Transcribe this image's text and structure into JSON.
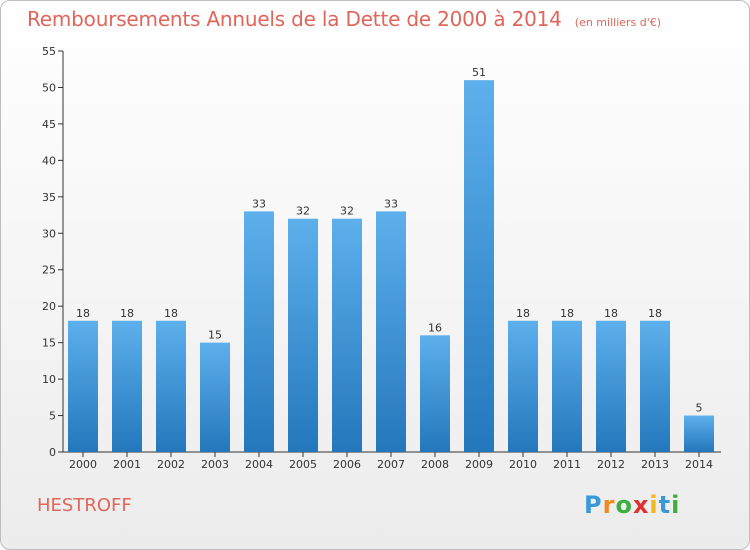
{
  "chart_data": {
    "type": "bar",
    "title": "Remboursements Annuels de la Dette de 2000 à 2014",
    "subtitle": "(en milliers d'€)",
    "categories": [
      "2000",
      "2001",
      "2002",
      "2003",
      "2004",
      "2005",
      "2006",
      "2007",
      "2008",
      "2009",
      "2010",
      "2011",
      "2012",
      "2013",
      "2014"
    ],
    "values": [
      18,
      18,
      18,
      15,
      33,
      32,
      32,
      33,
      16,
      51,
      18,
      18,
      18,
      18,
      5
    ],
    "ylim": [
      0,
      55
    ],
    "yticks": [
      0,
      5,
      10,
      15,
      20,
      25,
      30,
      35,
      40,
      45,
      50,
      55
    ],
    "grid": false,
    "bar_color": "#4a9ee0",
    "data_labels": true
  },
  "commune": "HESTROFF",
  "logo": {
    "text": "Proxiti",
    "letters": [
      {
        "ch": "P",
        "color": "#3a9ad9"
      },
      {
        "ch": "r",
        "color": "#f08a1c"
      },
      {
        "ch": "o",
        "color": "#3fae3f"
      },
      {
        "ch": "x",
        "color": "#e0312f"
      },
      {
        "ch": "i",
        "color": "#f0b81c"
      },
      {
        "ch": "t",
        "color": "#3a9ad9"
      },
      {
        "ch": "i",
        "color": "#3fae3f"
      }
    ]
  },
  "colors": {
    "title": "#e0655a",
    "axis": "#333333"
  }
}
